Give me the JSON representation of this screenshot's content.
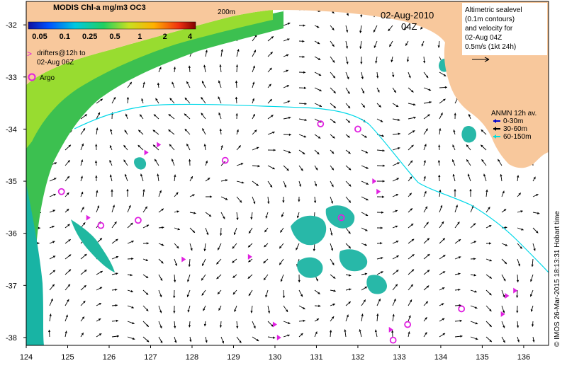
{
  "colorbar": {
    "title": "MODIS Chl-a mg/m3 OC3",
    "ticks": [
      "0.05",
      "0.1",
      "0.25",
      "0.5",
      "1",
      "2",
      "4"
    ]
  },
  "legend": {
    "drifters_line1": "drifters@12h to",
    "drifters_line2": "02-Aug 06Z",
    "argo": "Argo",
    "drifter_symbol": ">"
  },
  "isobath_label": "200m",
  "date": {
    "day": "02-Aug-2010",
    "time": "04Z"
  },
  "altimetry_note": {
    "line1": "Altimetric sealevel",
    "line2": "(0.1m contours)",
    "line3": "and velocity for",
    "line4": "02-Aug 04Z",
    "line5": "0.5m/s (1kt 24h)"
  },
  "anmn": {
    "title": "ANMN 12h av.",
    "items": [
      {
        "label": "0-30m",
        "color": "#0000cc"
      },
      {
        "label": "30-60m",
        "color": "#000000"
      },
      {
        "label": "60-150m",
        "color": "#00dddd"
      }
    ]
  },
  "credit": "© IMOS 26-Mar-2015 18:13:31 Hobart time",
  "axes": {
    "x_ticks": [
      "124",
      "125",
      "126",
      "127",
      "128",
      "129",
      "130",
      "131",
      "132",
      "133",
      "134",
      "135",
      "136"
    ],
    "y_ticks": [
      "-32",
      "-33",
      "-34",
      "-35",
      "-36",
      "-37",
      "-38"
    ]
  },
  "colors": {
    "land": "#f8c89c",
    "chl_low": "#10b8a0",
    "chl_mid": "#30c060",
    "chl_high": "#a0e020",
    "isobath": "#00d8e8",
    "argo": "#e020e0",
    "drifter": "#e020e0"
  },
  "argo_floats": [
    {
      "lon": 124.85,
      "lat": -35.2
    },
    {
      "lon": 125.8,
      "lat": -35.85
    },
    {
      "lon": 126.7,
      "lat": -35.75
    },
    {
      "lon": 128.8,
      "lat": -34.6
    },
    {
      "lon": 131.1,
      "lat": -33.9
    },
    {
      "lon": 132.0,
      "lat": -34.0
    },
    {
      "lon": 131.6,
      "lat": -35.7
    },
    {
      "lon": 133.2,
      "lat": -37.75
    },
    {
      "lon": 134.5,
      "lat": -37.45
    },
    {
      "lon": 132.85,
      "lat": -38.05
    }
  ],
  "drifters": [
    {
      "lon": 127.2,
      "lat": -34.3
    },
    {
      "lon": 126.9,
      "lat": -34.45
    },
    {
      "lon": 129.4,
      "lat": -36.45
    },
    {
      "lon": 132.4,
      "lat": -35.0
    },
    {
      "lon": 132.5,
      "lat": -35.2
    },
    {
      "lon": 135.6,
      "lat": -37.2
    },
    {
      "lon": 135.8,
      "lat": -37.1
    },
    {
      "lon": 135.5,
      "lat": -37.55
    },
    {
      "lon": 130.0,
      "lat": -37.75
    },
    {
      "lon": 130.1,
      "lat": -38.0
    },
    {
      "lon": 132.8,
      "lat": -37.85
    },
    {
      "lon": 125.5,
      "lat": -35.7
    },
    {
      "lon": 127.8,
      "lat": -36.5
    }
  ]
}
